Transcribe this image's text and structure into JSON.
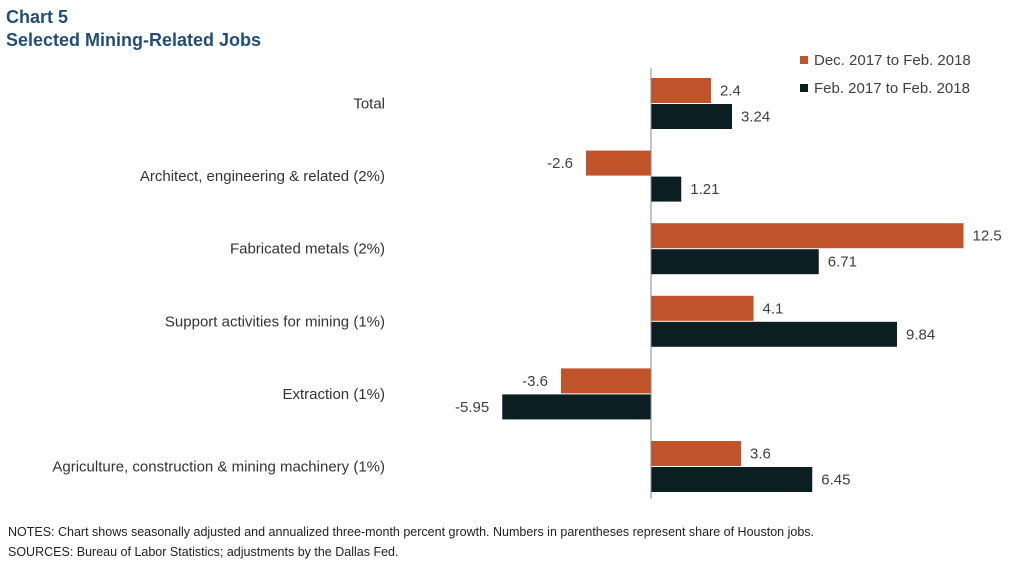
{
  "title_line1": "Chart 5",
  "title_line2": "Selected Mining-Related Jobs",
  "notes": "NOTES:  Chart shows seasonally adjusted and annualized three-month percent growth. Numbers in parentheses represent share of Houston jobs.",
  "sources": "SOURCES:  Bureau of Labor Statistics; adjustments by the Dallas Fed.",
  "chart_data": {
    "type": "bar",
    "orientation": "horizontal",
    "categories": [
      "Total",
      "Architect, engineering & related (2%)",
      "Fabricated metals (2%)",
      "Support activities for mining (1%)",
      "Extraction (1%)",
      "Agriculture, construction & mining machinery (1%)"
    ],
    "series": [
      {
        "name": "Dec. 2017 to Feb. 2018",
        "color": "#c0532a",
        "values": [
          2.4,
          -2.6,
          12.5,
          4.1,
          -3.6,
          3.6
        ],
        "labels": [
          "2.4",
          "-2.6",
          "12.5",
          "4.1",
          "-3.6",
          "3.6"
        ]
      },
      {
        "name": "Feb. 2017 to Feb. 2018",
        "color": "#0b1f22",
        "values": [
          3.24,
          1.21,
          6.71,
          9.84,
          -5.95,
          6.45
        ],
        "labels": [
          "3.24",
          "1.21",
          "6.71",
          "9.84",
          "-5.95",
          "6.45"
        ]
      }
    ],
    "legend_position": "top-right",
    "grid": false
  }
}
